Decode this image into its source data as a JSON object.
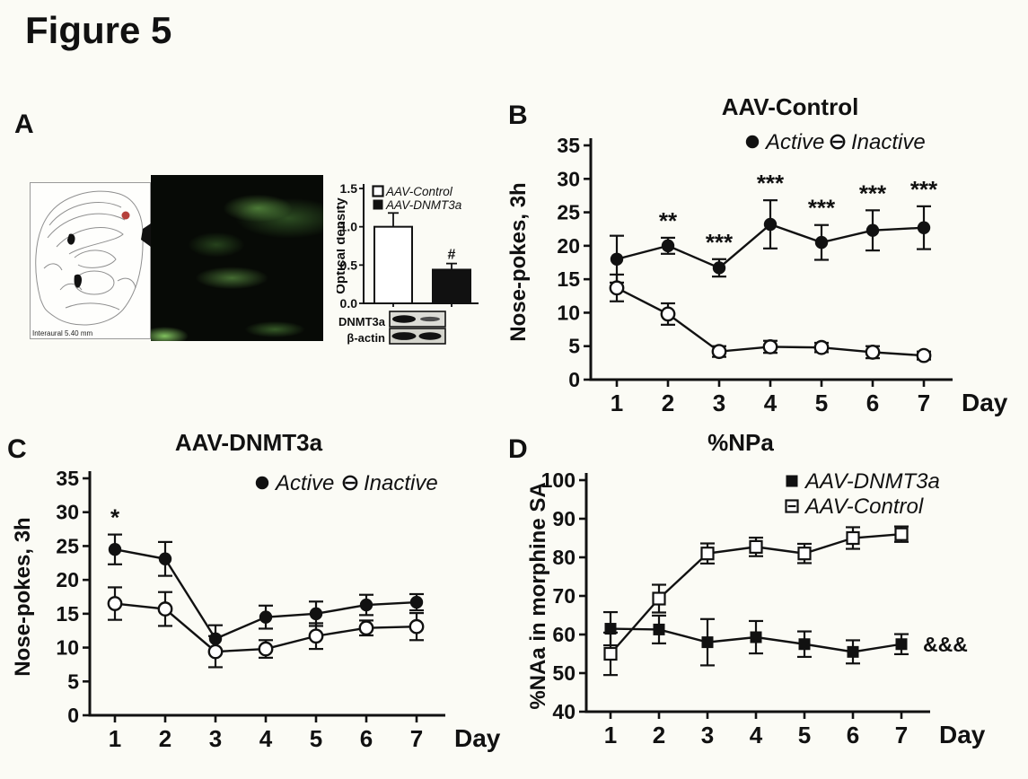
{
  "figure": {
    "title": "Figure 5",
    "background": "#fbfbf5",
    "ink_color": "#111111"
  },
  "panels": {
    "a": {
      "label": "A"
    },
    "b": {
      "label": "B"
    },
    "c": {
      "label": "C"
    },
    "d": {
      "label": "D"
    }
  },
  "panel_a": {
    "atlas_caption": "Interaural 5.40 mm",
    "atlas_marker_color": "#b5413c",
    "micrograph_glow_color": "#6ec74f",
    "blot_rows": {
      "row1": "DNMT3a",
      "row2": "β-actin"
    }
  },
  "chart_data": [
    {
      "panel": "A",
      "type": "bar",
      "title": "",
      "ylabel": "Optical density",
      "ylim": [
        0,
        1.5
      ],
      "yticks": [
        "0.0",
        "0.5",
        "1.0",
        "1.5"
      ],
      "categories": [
        "AAV-Control",
        "AAV-DNMT3a"
      ],
      "values": [
        1.0,
        0.44
      ],
      "errors": [
        0.18,
        0.08
      ],
      "bar_fills": [
        "#ffffff",
        "#111111"
      ],
      "legend": [
        {
          "label": "AAV-Control",
          "marker": "open-square"
        },
        {
          "label": "AAV-DNMT3a",
          "marker": "filled-square"
        }
      ],
      "annotations": [
        {
          "text": "#",
          "index": 1
        }
      ],
      "legend_position": "top-right",
      "grid": false
    },
    {
      "panel": "B",
      "type": "line",
      "title": "AAV-Control",
      "xlabel": "Day",
      "ylabel": "Nose-pokes, 3h",
      "x": [
        1,
        2,
        3,
        4,
        5,
        6,
        7
      ],
      "ylim": [
        0,
        35
      ],
      "yticks": [
        0,
        5,
        10,
        15,
        20,
        25,
        30,
        35
      ],
      "series": [
        {
          "name": "Active",
          "marker": "filled-circle",
          "values": [
            18,
            20,
            16.7,
            23.2,
            20.5,
            22.3,
            22.7
          ],
          "errors": [
            3.5,
            1.2,
            1.3,
            3.6,
            2.6,
            3.0,
            3.2
          ]
        },
        {
          "name": "Inactive",
          "marker": "open-circle",
          "legend_marker": "open-circle-dash",
          "values": [
            13.7,
            9.8,
            4.2,
            4.9,
            4.8,
            4.1,
            3.6
          ],
          "errors": [
            2.0,
            1.6,
            0.8,
            0.9,
            0.7,
            0.9,
            0.6
          ]
        }
      ],
      "significance": [
        {
          "x": 2,
          "text": "**"
        },
        {
          "x": 3,
          "text": "***"
        },
        {
          "x": 4,
          "text": "***"
        },
        {
          "x": 5,
          "text": "***"
        },
        {
          "x": 6,
          "text": "***"
        },
        {
          "x": 7,
          "text": "***"
        }
      ],
      "legend_position": "top-right",
      "grid": false
    },
    {
      "panel": "C",
      "type": "line",
      "title": "AAV-DNMT3a",
      "xlabel": "Day",
      "ylabel": "Nose-pokes, 3h",
      "x": [
        1,
        2,
        3,
        4,
        5,
        6,
        7
      ],
      "ylim": [
        0,
        35
      ],
      "yticks": [
        0,
        5,
        10,
        15,
        20,
        25,
        30,
        35
      ],
      "series": [
        {
          "name": "Active",
          "marker": "filled-circle",
          "values": [
            24.5,
            23.1,
            11.3,
            14.5,
            15.0,
            16.3,
            16.7
          ],
          "errors": [
            2.2,
            2.5,
            2.0,
            1.7,
            1.8,
            1.5,
            1.2
          ]
        },
        {
          "name": "Inactive",
          "marker": "open-circle",
          "legend_marker": "open-circle-dash",
          "values": [
            16.5,
            15.7,
            9.4,
            9.8,
            11.7,
            12.9,
            13.1
          ],
          "errors": [
            2.4,
            2.5,
            2.3,
            1.3,
            1.9,
            1.1,
            2.0
          ]
        }
      ],
      "significance": [
        {
          "x": 1,
          "text": "*"
        }
      ],
      "legend_position": "top-right",
      "grid": false
    },
    {
      "panel": "D",
      "type": "line",
      "title": "%NPa",
      "xlabel": "Day",
      "ylabel": "%NAa in morphine SA",
      "x": [
        1,
        2,
        3,
        4,
        5,
        6,
        7
      ],
      "ylim": [
        40,
        100
      ],
      "yticks": [
        40,
        50,
        60,
        70,
        80,
        90,
        100
      ],
      "series": [
        {
          "name": "AAV-DNMT3a",
          "marker": "filled-square",
          "values": [
            61.5,
            61.3,
            58.0,
            59.3,
            57.5,
            55.5,
            57.5
          ],
          "errors": [
            4.3,
            3.6,
            6.0,
            4.2,
            3.3,
            3.0,
            2.6
          ]
        },
        {
          "name": "AAV-Control",
          "marker": "open-square",
          "legend_marker": "open-square-dash",
          "values": [
            55.0,
            69.3,
            81.0,
            82.7,
            81.0,
            85.0,
            86.0
          ],
          "errors": [
            5.5,
            3.6,
            2.6,
            2.4,
            2.5,
            2.8,
            2.0
          ]
        }
      ],
      "significance": [
        {
          "x": 7,
          "series": 0,
          "text": "&&&",
          "placement": "right"
        }
      ],
      "legend_position": "top-right",
      "grid": false
    }
  ]
}
